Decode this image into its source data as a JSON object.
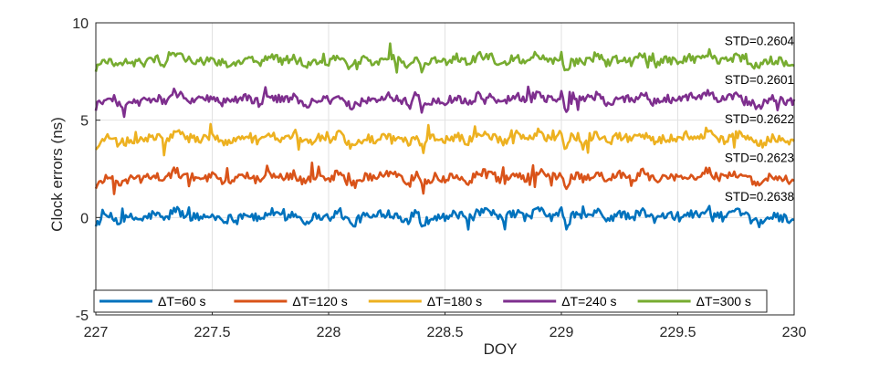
{
  "chart_data": {
    "type": "line",
    "xlabel": "DOY",
    "ylabel": "Clock errors (ns)",
    "xlim": [
      227,
      230
    ],
    "ylim": [
      -5,
      10
    ],
    "xticks": [
      "227",
      "227.5",
      "228",
      "228.5",
      "229",
      "229.5",
      "230"
    ],
    "yticks": [
      "-5",
      "0",
      "5",
      "10"
    ],
    "grid": true,
    "legend_position": "bottom, single row",
    "series": [
      {
        "name": "ΔT=60 s",
        "color": "#0072BD",
        "offset": 0,
        "std_label": "STD=0.2638"
      },
      {
        "name": "ΔT=120 s",
        "color": "#D95319",
        "offset": 2,
        "std_label": "STD=0.2623"
      },
      {
        "name": "ΔT=180 s",
        "color": "#EDB120",
        "offset": 4,
        "std_label": "STD=0.2622"
      },
      {
        "name": "ΔT=240 s",
        "color": "#7E2F8E",
        "offset": 6,
        "std_label": "STD=0.2601"
      },
      {
        "name": "ΔT=300 s",
        "color": "#77AC30",
        "offset": 8,
        "std_label": "STD=0.2604"
      }
    ],
    "common_profile": {
      "x": [
        227.0,
        227.05,
        227.1,
        227.15,
        227.2,
        227.25,
        227.3,
        227.34,
        227.38,
        227.45,
        227.5,
        227.55,
        227.6,
        227.65,
        227.7,
        227.75,
        227.8,
        227.85,
        227.9,
        227.95,
        228.0,
        228.05,
        228.1,
        228.15,
        228.2,
        228.25,
        228.3,
        228.35,
        228.38,
        228.4,
        228.45,
        228.5,
        228.55,
        228.6,
        228.65,
        228.7,
        228.75,
        228.8,
        228.85,
        228.9,
        228.95,
        229.0,
        229.02,
        229.05,
        229.1,
        229.15,
        229.2,
        229.25,
        229.3,
        229.35,
        229.4,
        229.45,
        229.5,
        229.55,
        229.6,
        229.63,
        229.65,
        229.7,
        229.75,
        229.8,
        229.85,
        229.9,
        229.95,
        230.0
      ],
      "y": [
        -0.3,
        0.1,
        -0.2,
        0.0,
        -0.1,
        0.2,
        -0.1,
        0.45,
        0.1,
        0.0,
        0.1,
        -0.1,
        0.0,
        0.2,
        -0.1,
        0.3,
        0.0,
        0.2,
        -0.2,
        0.1,
        0.0,
        0.3,
        -0.4,
        0.1,
        0.0,
        0.25,
        0.1,
        -0.2,
        0.4,
        -0.4,
        0.1,
        0.0,
        0.2,
        -0.1,
        0.3,
        0.2,
        -0.1,
        0.3,
        0.0,
        0.4,
        0.0,
        0.3,
        -0.5,
        0.2,
        0.0,
        0.3,
        -0.1,
        0.2,
        0.0,
        0.3,
        -0.1,
        0.1,
        0.0,
        0.2,
        0.1,
        0.5,
        0.2,
        0.0,
        0.3,
        0.0,
        -0.3,
        0.1,
        0.0,
        -0.1
      ]
    }
  }
}
